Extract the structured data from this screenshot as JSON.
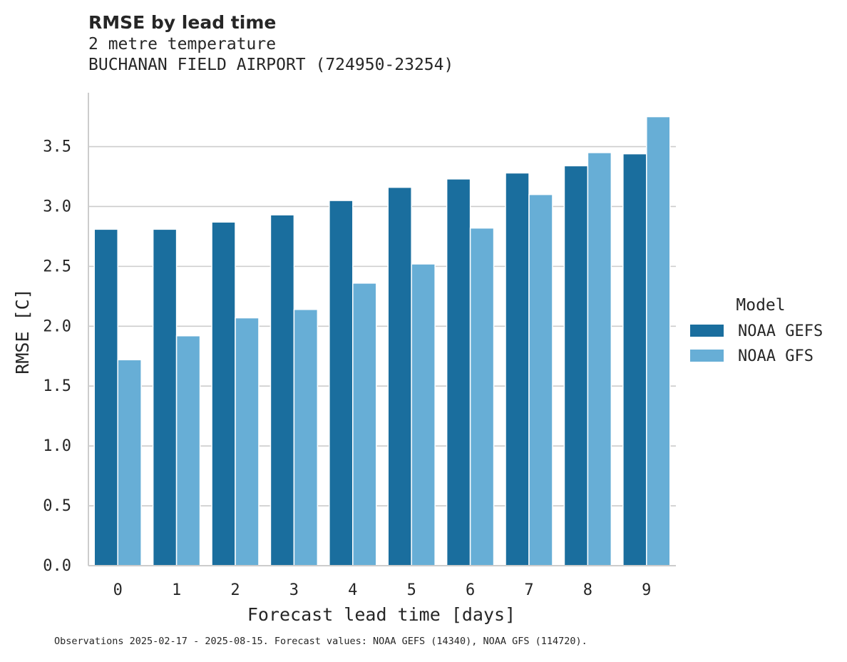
{
  "chart_data": {
    "type": "bar",
    "title": "RMSE by lead time",
    "subtitle_lines": [
      "2 metre temperature",
      "BUCHANAN FIELD AIRPORT (724950-23254)"
    ],
    "xlabel": "Forecast lead time [days]",
    "ylabel": "RMSE [C]",
    "categories": [
      "0",
      "1",
      "2",
      "3",
      "4",
      "5",
      "6",
      "7",
      "8",
      "9"
    ],
    "y_ticks": [
      "0.0",
      "0.5",
      "1.0",
      "1.5",
      "2.0",
      "2.5",
      "3.0",
      "3.5"
    ],
    "ylim": [
      0,
      3.95
    ],
    "grid": "horizontal",
    "legend": {
      "title": "Model",
      "placement": "right"
    },
    "series": [
      {
        "name": "NOAA GEFS",
        "color": "#1a6e9e",
        "values": [
          2.81,
          2.81,
          2.87,
          2.93,
          3.05,
          3.16,
          3.23,
          3.28,
          3.34,
          3.44
        ]
      },
      {
        "name": "NOAA GFS",
        "color": "#67aed6",
        "values": [
          1.72,
          1.92,
          2.07,
          2.14,
          2.36,
          2.52,
          2.82,
          3.1,
          3.45,
          3.75
        ]
      }
    ]
  },
  "footnote": "Observations 2025-02-17 - 2025-08-15. Forecast values: NOAA GEFS (14340), NOAA GFS (114720)."
}
